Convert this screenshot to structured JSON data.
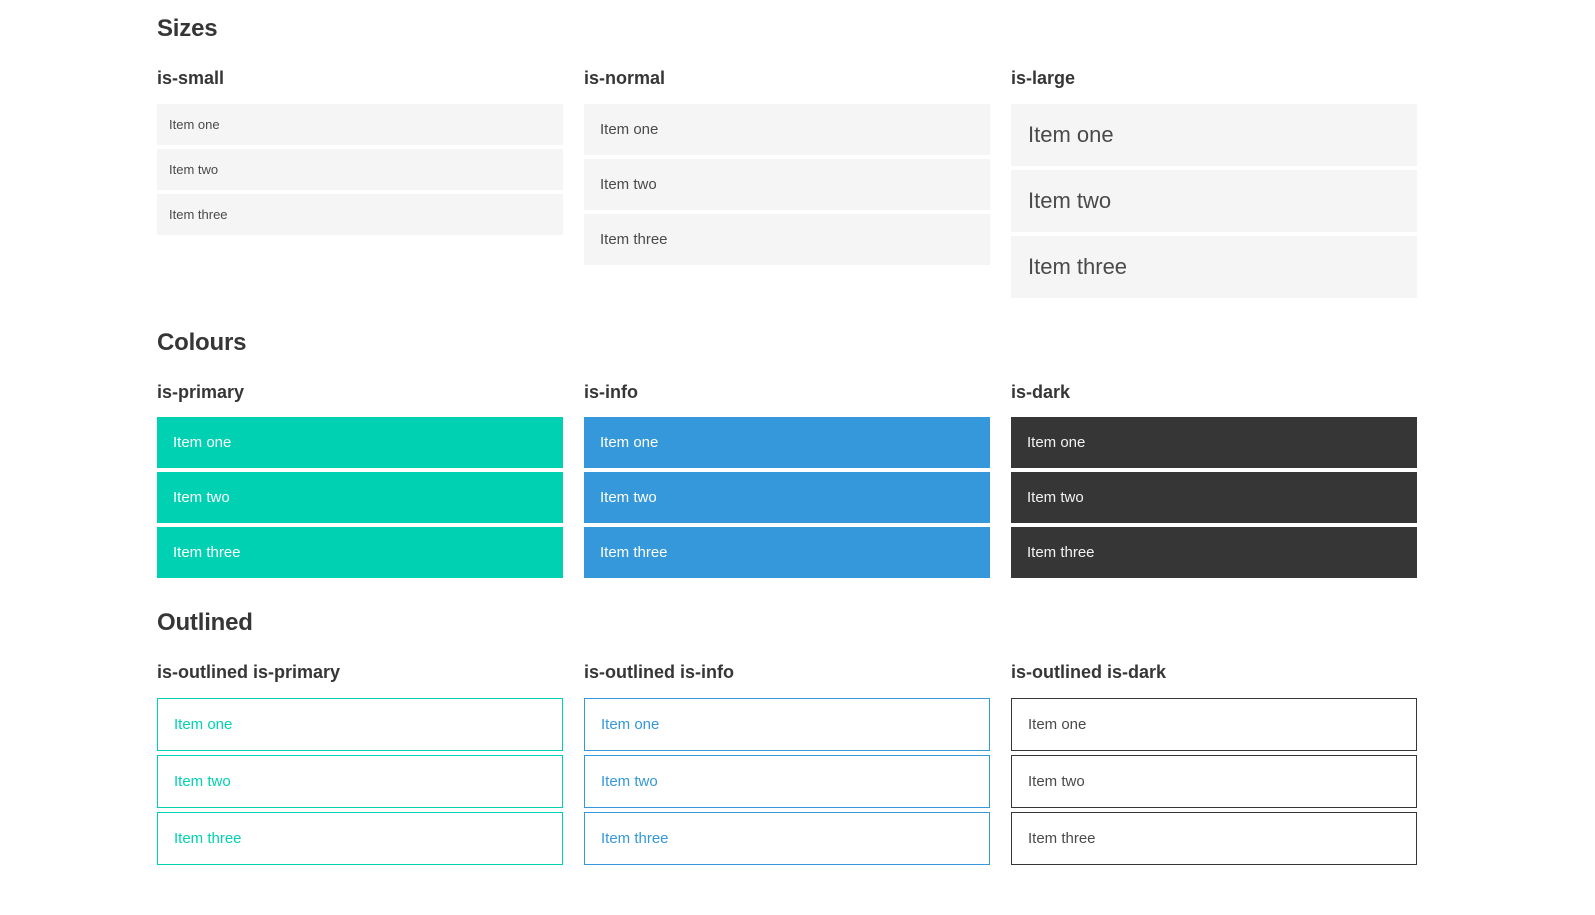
{
  "colors": {
    "primary": "#00d1b2",
    "info": "#3498db",
    "dark": "#363636",
    "item_bg": "#f5f5f5",
    "item_text": "#4a4a4a",
    "heading": "#363636"
  },
  "sections": [
    {
      "title": "Sizes",
      "groups": [
        {
          "label": "is-small",
          "items": [
            "Item one",
            "Item two",
            "Item three"
          ]
        },
        {
          "label": "is-normal",
          "items": [
            "Item one",
            "Item two",
            "Item three"
          ]
        },
        {
          "label": "is-large",
          "items": [
            "Item one",
            "Item two",
            "Item three"
          ]
        }
      ]
    },
    {
      "title": "Colours",
      "groups": [
        {
          "label": "is-primary",
          "items": [
            "Item one",
            "Item two",
            "Item three"
          ]
        },
        {
          "label": "is-info",
          "items": [
            "Item one",
            "Item two",
            "Item three"
          ]
        },
        {
          "label": "is-dark",
          "items": [
            "Item one",
            "Item two",
            "Item three"
          ]
        }
      ]
    },
    {
      "title": "Outlined",
      "groups": [
        {
          "label": "is-outlined is-primary",
          "items": [
            "Item one",
            "Item two",
            "Item three"
          ]
        },
        {
          "label": "is-outlined is-info",
          "items": [
            "Item one",
            "Item two",
            "Item three"
          ]
        },
        {
          "label": "is-outlined is-dark",
          "items": [
            "Item one",
            "Item two",
            "Item three"
          ]
        }
      ]
    }
  ]
}
